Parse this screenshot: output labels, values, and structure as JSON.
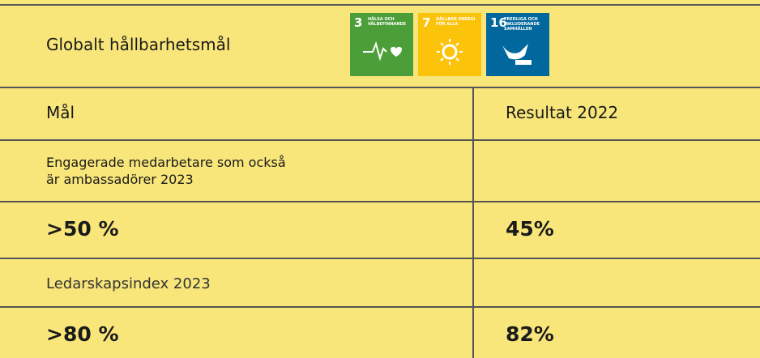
{
  "header": {
    "title": "Globalt hållbarhetsmål",
    "icons": [
      {
        "number": "3",
        "label": "HÄLSA OCH VÄLBEFINNANDE"
      },
      {
        "number": "7",
        "label": "HÅLLBAR ENERGI FÖR ALLA"
      },
      {
        "number": "16",
        "label": "FREDLIGA OCH INKLUDERANDE SAMHÄLLEN"
      }
    ]
  },
  "table": {
    "columns": [
      "Mål",
      "Resultat 2022"
    ],
    "goals": [
      {
        "description": [
          "Engagerade medarbetare som också",
          "är ambassadörer 2023"
        ],
        "target": ">50 %",
        "result": "45%"
      },
      {
        "description": [
          "Ledarskapsindex 2023"
        ],
        "target": ">80 %",
        "result": "82%"
      }
    ]
  }
}
